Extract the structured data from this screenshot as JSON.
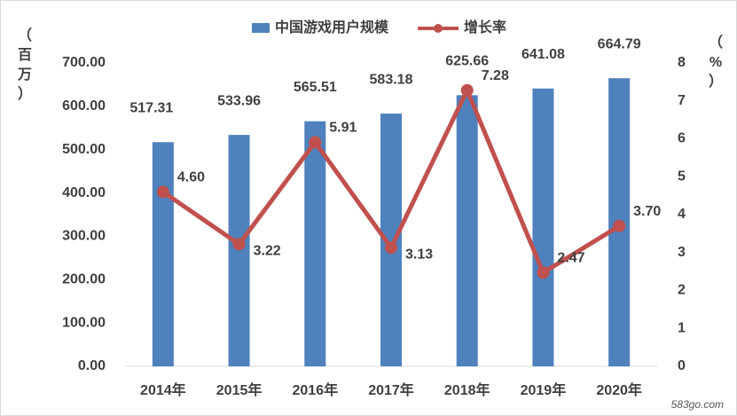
{
  "chart_data": {
    "type": "bar",
    "categories": [
      "2014年",
      "2015年",
      "2016年",
      "2017年",
      "2018年",
      "2019年",
      "2020年"
    ],
    "series": [
      {
        "name": "中国游戏用户规模",
        "type": "bar",
        "axis": "left",
        "values": [
          517.31,
          533.96,
          565.51,
          583.18,
          625.66,
          641.08,
          664.79
        ],
        "labels": [
          "517.31",
          "533.96",
          "565.51",
          "583.18",
          "625.66",
          "641.08",
          "664.79"
        ]
      },
      {
        "name": "增长率",
        "type": "line",
        "axis": "right",
        "values": [
          4.6,
          3.22,
          5.91,
          3.13,
          7.28,
          2.47,
          3.7
        ],
        "labels": [
          "4.60",
          "3.22",
          "5.91",
          "3.13",
          "7.28",
          "2.47",
          "3.70"
        ]
      }
    ],
    "y_left": {
      "label": "（百万）",
      "ylim": [
        0,
        700
      ],
      "ticks": [
        "0.00",
        "100.00",
        "200.00",
        "300.00",
        "400.00",
        "500.00",
        "600.00",
        "700.00"
      ]
    },
    "y_right": {
      "label": "（%）",
      "ylim": [
        0,
        8
      ],
      "ticks": [
        "0",
        "1",
        "2",
        "3",
        "4",
        "5",
        "6",
        "7",
        "8"
      ]
    },
    "legend_position": "top-center",
    "grid": false,
    "colors": {
      "bar": "#4f81bd",
      "line": "#c0504d",
      "axis": "#d9d9d9",
      "text": "#404040"
    },
    "watermark": "583go.com"
  }
}
